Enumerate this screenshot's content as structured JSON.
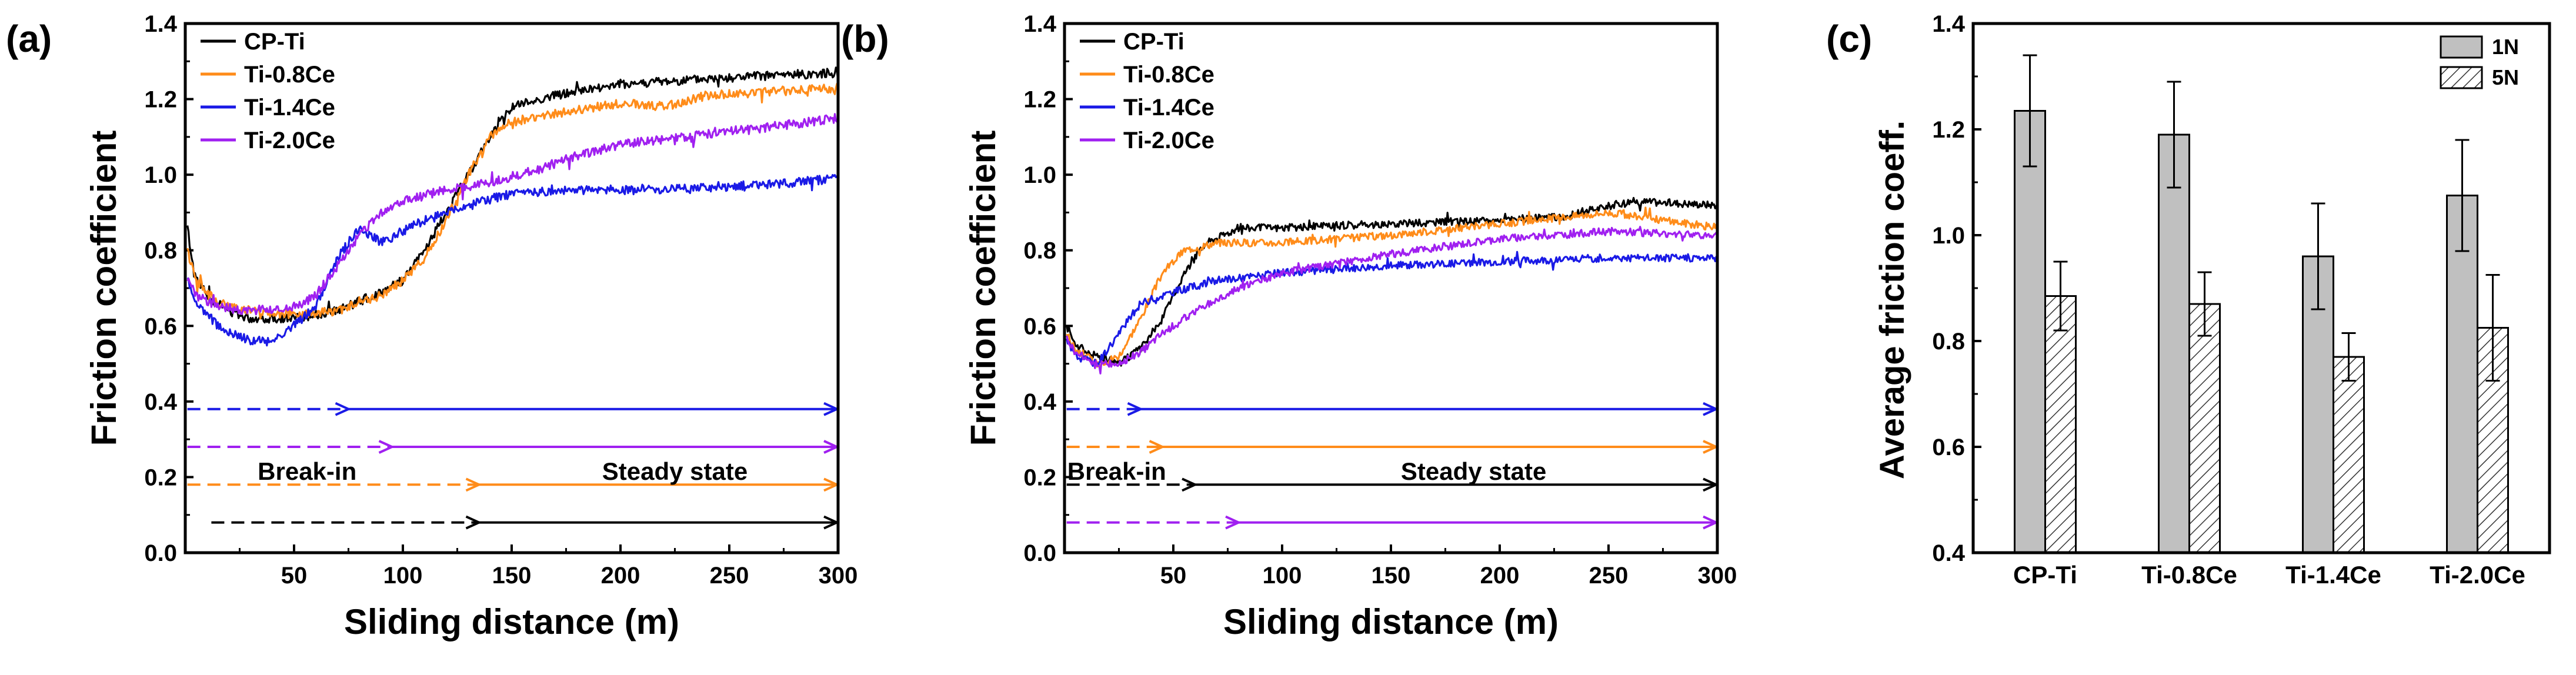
{
  "chart_data": [
    {
      "panel": "(a)",
      "type": "line",
      "xlabel": "Sliding distance (m)",
      "ylabel": "Friction coefficient",
      "xlim": [
        0,
        300
      ],
      "ylim": [
        0,
        1.4
      ],
      "xticks": [
        50,
        100,
        150,
        200,
        250,
        300
      ],
      "yticks": [
        0.0,
        0.2,
        0.4,
        0.6,
        0.8,
        1.0,
        1.2,
        1.4
      ],
      "legend": "top-left",
      "series": [
        {
          "name": "CP-Ti",
          "color": "#000000",
          "noise": 0.012,
          "points": [
            [
              1,
              0.86
            ],
            [
              4,
              0.74
            ],
            [
              10,
              0.68
            ],
            [
              20,
              0.64
            ],
            [
              30,
              0.62
            ],
            [
              50,
              0.62
            ],
            [
              70,
              0.64
            ],
            [
              90,
              0.69
            ],
            [
              100,
              0.72
            ],
            [
              110,
              0.8
            ],
            [
              120,
              0.9
            ],
            [
              130,
              1.0
            ],
            [
              140,
              1.1
            ],
            [
              150,
              1.18
            ],
            [
              170,
              1.21
            ],
            [
              200,
              1.24
            ],
            [
              230,
              1.25
            ],
            [
              260,
              1.26
            ],
            [
              300,
              1.27
            ]
          ]
        },
        {
          "name": "Ti-0.8Ce",
          "color": "#ff8c1a",
          "noise": 0.012,
          "points": [
            [
              1,
              0.8
            ],
            [
              5,
              0.72
            ],
            [
              15,
              0.66
            ],
            [
              30,
              0.64
            ],
            [
              50,
              0.63
            ],
            [
              70,
              0.64
            ],
            [
              90,
              0.68
            ],
            [
              100,
              0.72
            ],
            [
              110,
              0.78
            ],
            [
              120,
              0.88
            ],
            [
              130,
              1.0
            ],
            [
              140,
              1.1
            ],
            [
              150,
              1.14
            ],
            [
              170,
              1.16
            ],
            [
              200,
              1.19
            ],
            [
              220,
              1.18
            ],
            [
              240,
              1.21
            ],
            [
              270,
              1.22
            ],
            [
              300,
              1.23
            ]
          ]
        },
        {
          "name": "Ti-1.4Ce",
          "color": "#1a1ae6",
          "noise": 0.012,
          "points": [
            [
              1,
              0.72
            ],
            [
              5,
              0.66
            ],
            [
              15,
              0.6
            ],
            [
              30,
              0.56
            ],
            [
              40,
              0.56
            ],
            [
              50,
              0.6
            ],
            [
              60,
              0.65
            ],
            [
              70,
              0.78
            ],
            [
              80,
              0.86
            ],
            [
              90,
              0.82
            ],
            [
              100,
              0.85
            ],
            [
              110,
              0.88
            ],
            [
              130,
              0.92
            ],
            [
              150,
              0.95
            ],
            [
              180,
              0.96
            ],
            [
              220,
              0.96
            ],
            [
              260,
              0.97
            ],
            [
              300,
              0.99
            ]
          ]
        },
        {
          "name": "Ti-2.0Ce",
          "color": "#a020f0",
          "noise": 0.012,
          "points": [
            [
              1,
              0.72
            ],
            [
              5,
              0.68
            ],
            [
              15,
              0.65
            ],
            [
              30,
              0.64
            ],
            [
              50,
              0.65
            ],
            [
              60,
              0.68
            ],
            [
              70,
              0.76
            ],
            [
              80,
              0.84
            ],
            [
              90,
              0.9
            ],
            [
              100,
              0.93
            ],
            [
              120,
              0.96
            ],
            [
              140,
              0.98
            ],
            [
              160,
              1.01
            ],
            [
              180,
              1.05
            ],
            [
              200,
              1.08
            ],
            [
              230,
              1.1
            ],
            [
              260,
              1.12
            ],
            [
              300,
              1.15
            ]
          ]
        }
      ],
      "stage_arrows": [
        {
          "color": "#1a1ae6",
          "y": 0.38,
          "x0": 1,
          "xb": 75,
          "x1": 300
        },
        {
          "color": "#a020f0",
          "y": 0.28,
          "x0": 1,
          "xb": 95,
          "x1": 300
        },
        {
          "color": "#ff8c1a",
          "y": 0.18,
          "x0": 1,
          "xb": 135,
          "x1": 300
        },
        {
          "color": "#000000",
          "y": 0.08,
          "x0": 12,
          "xb": 135,
          "x1": 300
        }
      ],
      "annotations": [
        {
          "text": "Break-in",
          "x": 56,
          "y": 0.215
        },
        {
          "text": "Steady state",
          "x": 225,
          "y": 0.215
        }
      ]
    },
    {
      "panel": "(b)",
      "type": "line",
      "xlabel": "Sliding distance (m)",
      "ylabel": "Friction coefficient",
      "xlim": [
        0,
        300
      ],
      "ylim": [
        0,
        1.4
      ],
      "xticks": [
        50,
        100,
        150,
        200,
        250,
        300
      ],
      "yticks": [
        0.0,
        0.2,
        0.4,
        0.6,
        0.8,
        1.0,
        1.2,
        1.4
      ],
      "legend": "top-left",
      "series": [
        {
          "name": "CP-Ti",
          "color": "#000000",
          "noise": 0.01,
          "points": [
            [
              1,
              0.6
            ],
            [
              5,
              0.55
            ],
            [
              15,
              0.52
            ],
            [
              25,
              0.5
            ],
            [
              35,
              0.54
            ],
            [
              45,
              0.62
            ],
            [
              55,
              0.74
            ],
            [
              65,
              0.82
            ],
            [
              80,
              0.86
            ],
            [
              100,
              0.86
            ],
            [
              150,
              0.87
            ],
            [
              200,
              0.88
            ],
            [
              230,
              0.89
            ],
            [
              260,
              0.93
            ],
            [
              300,
              0.92
            ]
          ]
        },
        {
          "name": "Ti-0.8Ce",
          "color": "#ff8c1a",
          "noise": 0.01,
          "points": [
            [
              1,
              0.58
            ],
            [
              5,
              0.54
            ],
            [
              15,
              0.5
            ],
            [
              25,
              0.52
            ],
            [
              35,
              0.62
            ],
            [
              45,
              0.74
            ],
            [
              55,
              0.8
            ],
            [
              70,
              0.82
            ],
            [
              100,
              0.82
            ],
            [
              150,
              0.84
            ],
            [
              200,
              0.87
            ],
            [
              250,
              0.9
            ],
            [
              300,
              0.86
            ]
          ]
        },
        {
          "name": "Ti-1.4Ce",
          "color": "#1a1ae6",
          "noise": 0.01,
          "points": [
            [
              1,
              0.56
            ],
            [
              5,
              0.52
            ],
            [
              15,
              0.5
            ],
            [
              25,
              0.58
            ],
            [
              35,
              0.66
            ],
            [
              50,
              0.69
            ],
            [
              70,
              0.72
            ],
            [
              100,
              0.74
            ],
            [
              150,
              0.76
            ],
            [
              200,
              0.77
            ],
            [
              250,
              0.78
            ],
            [
              300,
              0.78
            ]
          ]
        },
        {
          "name": "Ti-2.0Ce",
          "color": "#a020f0",
          "noise": 0.01,
          "points": [
            [
              1,
              0.57
            ],
            [
              5,
              0.53
            ],
            [
              15,
              0.5
            ],
            [
              25,
              0.5
            ],
            [
              35,
              0.53
            ],
            [
              45,
              0.58
            ],
            [
              60,
              0.64
            ],
            [
              80,
              0.7
            ],
            [
              100,
              0.74
            ],
            [
              150,
              0.79
            ],
            [
              200,
              0.83
            ],
            [
              250,
              0.85
            ],
            [
              300,
              0.84
            ]
          ]
        }
      ],
      "stage_arrows": [
        {
          "color": "#1a1ae6",
          "y": 0.38,
          "x0": 1,
          "xb": 35,
          "x1": 300
        },
        {
          "color": "#ff8c1a",
          "y": 0.28,
          "x0": 1,
          "xb": 45,
          "x1": 300
        },
        {
          "color": "#000000",
          "y": 0.18,
          "x0": 1,
          "xb": 60,
          "x1": 300
        },
        {
          "color": "#a020f0",
          "y": 0.08,
          "x0": 1,
          "xb": 80,
          "x1": 300
        }
      ],
      "annotations": [
        {
          "text": "Break-in",
          "x": 24,
          "y": 0.215
        },
        {
          "text": "Steady state",
          "x": 188,
          "y": 0.215
        }
      ]
    },
    {
      "panel": "(c)",
      "type": "bar",
      "xlabel": "",
      "ylabel": "Average friction coeff.",
      "ylim": [
        0.4,
        1.4
      ],
      "yticks": [
        0.4,
        0.6,
        0.8,
        1.0,
        1.2,
        1.4
      ],
      "categories": [
        "CP-Ti",
        "Ti-0.8Ce",
        "Ti-1.4Ce",
        "Ti-2.0Ce"
      ],
      "legend": "top-right",
      "series": [
        {
          "name": "1N",
          "fill": "#c0c0c0",
          "hatch": false,
          "values": [
            1.235,
            1.19,
            0.96,
            1.075
          ],
          "errors": [
            0.105,
            0.1,
            0.1,
            0.105
          ]
        },
        {
          "name": "5N",
          "fill": "#ffffff",
          "hatch": true,
          "values": [
            0.885,
            0.87,
            0.77,
            0.825
          ],
          "errors": [
            0.065,
            0.06,
            0.045,
            0.1
          ]
        }
      ]
    }
  ]
}
